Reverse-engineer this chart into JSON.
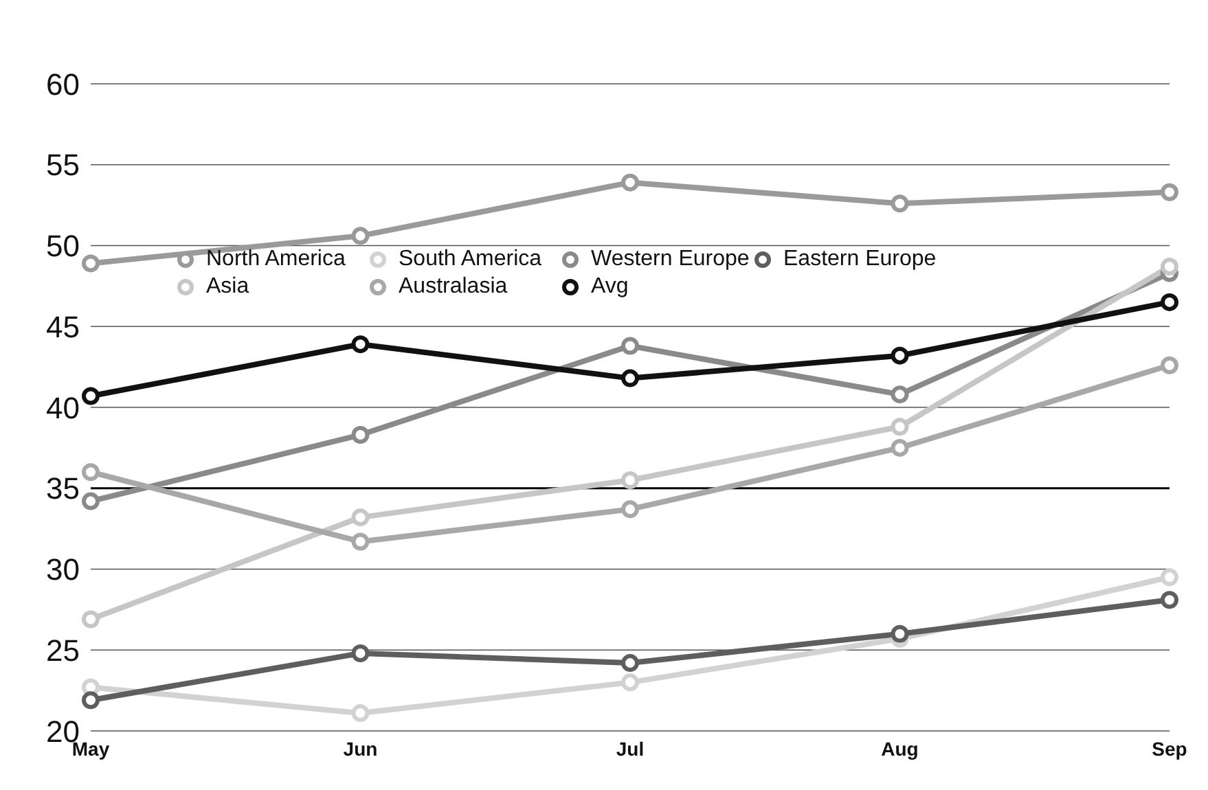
{
  "chart_data": {
    "type": "line",
    "categories": [
      "May",
      "Jun",
      "Jul",
      "Aug",
      "Sep"
    ],
    "series": [
      {
        "name": "North America",
        "color": "#9a9a9a",
        "values": [
          48.9,
          50.6,
          53.9,
          52.6,
          53.3
        ]
      },
      {
        "name": "South America",
        "color": "#d2d2d2",
        "values": [
          22.7,
          21.1,
          23,
          25.7,
          29.5
        ]
      },
      {
        "name": "Western Europe",
        "color": "#8a8a8a",
        "values": [
          34.2,
          38.3,
          43.8,
          40.8,
          48.3
        ]
      },
      {
        "name": "Eastern Europe",
        "color": "#5e5e5e",
        "values": [
          21.9,
          24.8,
          24.2,
          26,
          28.1
        ]
      },
      {
        "name": "Asia",
        "color": "#c6c6c6",
        "values": [
          26.9,
          33.2,
          35.5,
          38.8,
          48.7
        ]
      },
      {
        "name": "Australasia",
        "color": "#a8a8a8",
        "values": [
          36,
          31.7,
          33.7,
          37.5,
          42.6
        ]
      },
      {
        "name": "Avg",
        "color": "#111111",
        "values": [
          40.7,
          43.9,
          41.8,
          43.2,
          46.5
        ]
      }
    ],
    "ylim": [
      20,
      60
    ],
    "yticks": [
      20,
      25,
      30,
      35,
      40,
      45,
      50,
      55,
      60
    ],
    "grid": "y",
    "legend": "top left",
    "marker": "circle",
    "line_style": "solid",
    "ref_lines": [
      {
        "axis": "y",
        "value": 35,
        "color": "#000000"
      }
    ]
  }
}
